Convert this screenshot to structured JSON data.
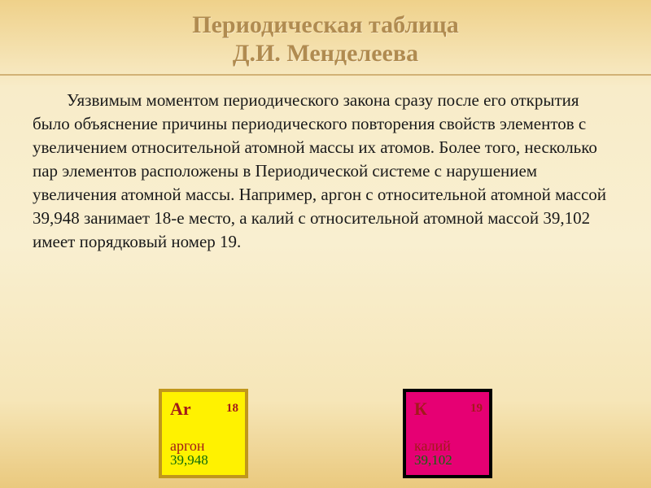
{
  "title_line1": "Периодическая таблица",
  "title_line2": "Д.И. Менделеева",
  "body": "Уязвимым моментом периодического закона сразу после его открытия было объяснение причины периодического повторения свойств элементов с увеличением относительной атомной массы их атомов. Более того, несколько пар элементов расположены в Периодической системе с нарушением увеличения атомной массы. Например, аргон с относительной атомной массой 39,948 занимает 18-е место, а калий с относительной атомной массой 39,102 имеет порядковый номер 19.",
  "elements": {
    "argon": {
      "symbol": "Ar",
      "number": "18",
      "name": "аргон",
      "mass": "39,948",
      "bg_color": "#fff200",
      "border_color": "#c0971c",
      "symbol_color": "#a21a1a",
      "name_color": "#a21a1a",
      "mass_color": "#0c6a0c"
    },
    "potassium": {
      "symbol": "К",
      "number": "19",
      "name": "калий",
      "mass": "39,102",
      "bg_color": "#e60073",
      "border_color": "#000000",
      "symbol_color": "#a21a1a",
      "name_color": "#a21a1a",
      "mass_color": "#0c6a0c"
    }
  },
  "style": {
    "title_color": "#b08b50",
    "title_fontsize": 30,
    "body_fontsize": 21,
    "body_color": "#1a1a1a",
    "rule_color": "#d1b276",
    "bg_gradient": [
      "#efd18a",
      "#f8ecc9",
      "#f9efd0",
      "#f6e6b8",
      "#eac97e"
    ],
    "element_box_size": 110
  }
}
